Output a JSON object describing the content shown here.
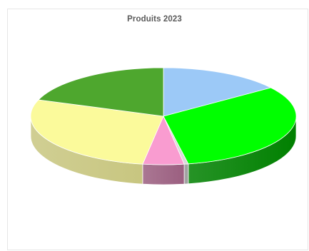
{
  "chart_data": {
    "type": "pie",
    "title": "Produits 2023",
    "legend": "none",
    "start_angle_deg": 0,
    "direction": "clockwise",
    "slices": [
      {
        "value": 15,
        "color": "#9cc9f7",
        "side_color": "#6f93bb"
      },
      {
        "value": 32,
        "color": "#00ff00",
        "side_color": "#008000"
      },
      {
        "value": 0.5,
        "color": "#d9d9d9",
        "side_color": "#9a9a9a"
      },
      {
        "value": 5,
        "color": "#f99cd0",
        "side_color": "#9b5f80"
      },
      {
        "value": 28,
        "color": "#fbfa9b",
        "side_color": "#c8c680"
      },
      {
        "value": 19.5,
        "color": "#4ea72e",
        "side_color": "#2e6f1a"
      }
    ]
  }
}
